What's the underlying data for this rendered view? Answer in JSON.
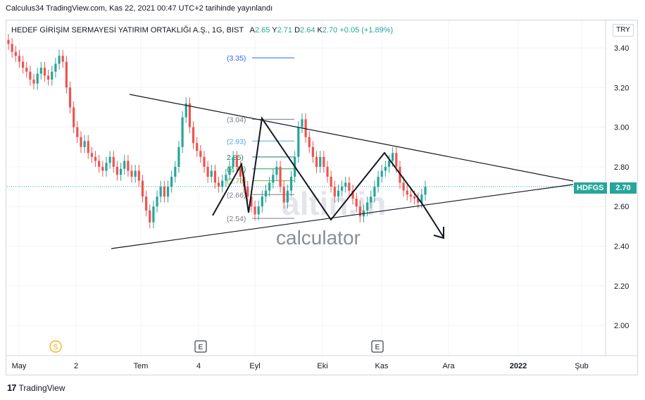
{
  "header": {
    "published": "Calculus34 TradingView.com, Kas 22, 2021 00:47 UTC+2 tarihinde yayınlandı",
    "symbol_name": "HEDEF GİRİŞİM SERMAYESİ YATIRIM ORTAKLIĞI A.Ş., 1G, BIST",
    "ohlc_prefix_a": "A",
    "open": "2.65",
    "ohlc_prefix_y": "Y",
    "high": "2.71",
    "ohlc_prefix_d": "D",
    "low": "2.64",
    "ohlc_prefix_k": "K",
    "close": "2.70",
    "change": "+0.05 (+1.89%)",
    "currency": "TRY"
  },
  "price_badge": {
    "ticker": "HDFGS",
    "price": "2.70"
  },
  "footer": {
    "brand": "TradingView"
  },
  "watermark": {
    "brand": "altin.in",
    "sub": "calculator"
  },
  "colors": {
    "up": "#26a69a",
    "down": "#ef5350",
    "fib_blue": "#2962ff"
  },
  "event_markers": [
    {
      "label": "S",
      "x_label": "2"
    },
    {
      "label": "E",
      "x_label": "4"
    },
    {
      "label": "E",
      "x_label": "Kas"
    }
  ],
  "chart_data": {
    "type": "candlestick",
    "title": "",
    "xlabel": "",
    "ylabel": "",
    "ylim": [
      1.86,
      3.5
    ],
    "y_ticks": [
      "3.40",
      "3.20",
      "3.00",
      "2.80",
      "2.60",
      "2.40",
      "2.20",
      "2.00"
    ],
    "x_ticks": [
      "May",
      "2",
      "Tem",
      "4",
      "Eyl",
      "Eki",
      "Kas",
      "Ara",
      "2022",
      "Şub"
    ],
    "last_price": 2.7,
    "fib_levels": [
      {
        "label": "(3.35)",
        "value": 3.35
      },
      {
        "label": "(3.04)",
        "value": 3.04
      },
      {
        "label": "(2.93)",
        "value": 2.93
      },
      {
        "label": "2.85)",
        "value": 2.85
      },
      {
        "label": "(2.79)",
        "value": 2.79
      },
      {
        "label": "(2.73)",
        "value": 2.73
      },
      {
        "label": "(2.66)",
        "value": 2.66
      },
      {
        "label": "(2.54)",
        "value": 2.54
      }
    ],
    "closes": [
      3.42,
      3.38,
      3.36,
      3.33,
      3.3,
      3.28,
      3.24,
      3.22,
      3.27,
      3.3,
      3.26,
      3.24,
      3.28,
      3.32,
      3.36,
      3.33,
      3.2,
      3.1,
      3.0,
      2.95,
      2.9,
      2.93,
      2.87,
      2.85,
      2.83,
      2.8,
      2.78,
      2.82,
      2.85,
      2.8,
      2.76,
      2.79,
      2.83,
      2.78,
      2.75,
      2.78,
      2.73,
      2.65,
      2.58,
      2.52,
      2.6,
      2.65,
      2.7,
      2.65,
      2.7,
      2.75,
      2.8,
      2.9,
      3.05,
      3.12,
      3.0,
      2.92,
      2.88,
      2.85,
      2.8,
      2.75,
      2.78,
      2.72,
      2.7,
      2.73,
      2.76,
      2.8,
      2.85,
      2.8,
      2.75,
      2.7,
      2.65,
      2.6,
      2.56,
      2.6,
      2.65,
      2.68,
      2.72,
      2.76,
      2.8,
      2.7,
      2.62,
      2.68,
      2.75,
      2.85,
      3.0,
      3.04,
      2.95,
      2.9,
      2.85,
      2.8,
      2.85,
      2.8,
      2.75,
      2.7,
      2.65,
      2.68,
      2.7,
      2.72,
      2.68,
      2.64,
      2.6,
      2.55,
      2.58,
      2.62,
      2.65,
      2.7,
      2.75,
      2.78,
      2.8,
      2.83,
      2.87,
      2.8,
      2.72,
      2.68,
      2.66,
      2.65,
      2.64,
      2.62,
      2.66,
      2.7
    ]
  }
}
